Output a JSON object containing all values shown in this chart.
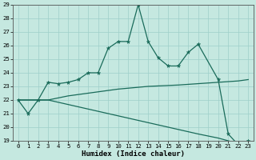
{
  "xlabel": "Humidex (Indice chaleur)",
  "bg_color": "#c5e8e0",
  "line_color": "#1a6b5a",
  "grid_color": "#9ecfca",
  "ylim": [
    19,
    29
  ],
  "xlim": [
    -0.5,
    23.5
  ],
  "yticks": [
    19,
    20,
    21,
    22,
    23,
    24,
    25,
    26,
    27,
    28,
    29
  ],
  "xticks": [
    0,
    1,
    2,
    3,
    4,
    5,
    6,
    7,
    8,
    9,
    10,
    11,
    12,
    13,
    14,
    15,
    16,
    17,
    18,
    19,
    20,
    21,
    22,
    23
  ],
  "line1_x": [
    0,
    1,
    2,
    3,
    4,
    5,
    6,
    7,
    8,
    9,
    10,
    11,
    12,
    13,
    14,
    15,
    16,
    17,
    18,
    20,
    21,
    22,
    23
  ],
  "line1_y": [
    22,
    21,
    22,
    23.3,
    23.2,
    23.3,
    23.5,
    24.0,
    24.0,
    25.8,
    26.3,
    26.3,
    29.0,
    26.3,
    25.1,
    24.5,
    24.5,
    25.5,
    26.1,
    23.5,
    19.5,
    18.7,
    19.0
  ],
  "line2_x": [
    0,
    3,
    5,
    8,
    10,
    13,
    16,
    18,
    20,
    22,
    23
  ],
  "line2_y": [
    22.0,
    22.0,
    22.3,
    22.6,
    22.8,
    23.0,
    23.1,
    23.2,
    23.3,
    23.4,
    23.5
  ],
  "line3_x": [
    0,
    3,
    6,
    9,
    12,
    15,
    18,
    20,
    21,
    22,
    23
  ],
  "line3_y": [
    22.0,
    22.0,
    21.5,
    21.0,
    20.5,
    20.0,
    19.5,
    19.2,
    19.0,
    18.8,
    18.7
  ]
}
